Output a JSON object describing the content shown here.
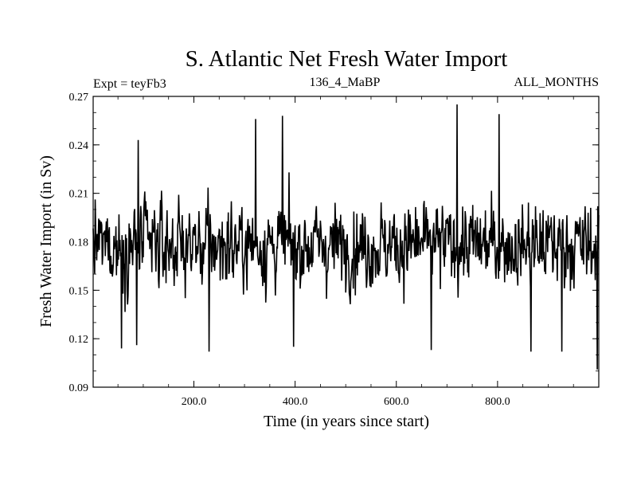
{
  "chart_data": {
    "type": "line",
    "title": "S. Atlantic Net Fresh Water Import",
    "subtitle_left": "Expt = teyFb3",
    "subtitle_center": "136_4_MaBP",
    "subtitle_right": "ALL_MONTHS",
    "xlabel": "Time (in years since start)",
    "ylabel": "Fresh Water Import (in Sv)",
    "xlim": [
      1,
      1000
    ],
    "ylim": [
      0.09,
      0.27
    ],
    "xticks": [
      200,
      400,
      600,
      800
    ],
    "xtick_labels": [
      "200.0",
      "400.0",
      "600.0",
      "800.0"
    ],
    "yticks": [
      0.09,
      0.12,
      0.15,
      0.18,
      0.21,
      0.24,
      0.27
    ],
    "ytick_labels": [
      "0.09",
      "0.12",
      "0.15",
      "0.18",
      "0.21",
      "0.24",
      "0.27"
    ],
    "series": [
      {
        "name": "Net Fresh Water Import",
        "mean": 0.178,
        "std_dev": 0.02,
        "n_points": 1000,
        "noted_extremes": [
          {
            "x": 720,
            "y": 0.265
          },
          {
            "x": 375,
            "y": 0.258
          },
          {
            "x": 322,
            "y": 0.256
          },
          {
            "x": 803,
            "y": 0.259
          },
          {
            "x": 90,
            "y": 0.243
          },
          {
            "x": 230,
            "y": 0.112
          },
          {
            "x": 57,
            "y": 0.114
          },
          {
            "x": 87,
            "y": 0.116
          },
          {
            "x": 397,
            "y": 0.115
          },
          {
            "x": 669,
            "y": 0.113
          },
          {
            "x": 866,
            "y": 0.112
          },
          {
            "x": 927,
            "y": 0.112
          },
          {
            "x": 997,
            "y": 0.101
          }
        ]
      }
    ]
  }
}
